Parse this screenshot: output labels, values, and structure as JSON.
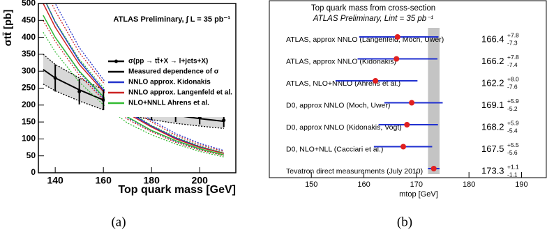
{
  "captions": [
    "(a)",
    "(b)"
  ],
  "chart_data": [
    {
      "type": "line",
      "title": "ATLAS Preliminary, ∫ L = 35 pb⁻¹",
      "xlabel": "Top quark mass [GeV]",
      "ylabel": "σtt̄ [pb]",
      "xlim": [
        133,
        215
      ],
      "xticks": [
        140,
        160,
        180,
        200
      ],
      "ylim": [
        0,
        500
      ],
      "yticks": [
        0,
        50,
        100,
        150,
        200,
        250,
        300,
        350,
        400,
        450,
        500
      ],
      "x": [
        135,
        140,
        150,
        160,
        170,
        180,
        190,
        200,
        210
      ],
      "points": {
        "name": "σ(pp → tt̄+X → l+jets+X)",
        "color": "#000000",
        "x": [
          140,
          150,
          160,
          170,
          175,
          180,
          190,
          200,
          210
        ],
        "values": [
          280,
          240,
          215,
          195,
          190,
          180,
          172,
          163,
          155
        ],
        "errors": [
          40,
          38,
          30,
          27,
          25,
          25,
          22,
          20,
          20
        ]
      },
      "band_color": "#d8d8d8",
      "series": [
        {
          "name": "Measured dependence of σ",
          "color": "#000000",
          "values": [
            305,
            280,
            245,
            215,
            197,
            182,
            170,
            160,
            152
          ],
          "low": [
            262,
            242,
            212,
            186,
            170,
            157,
            146,
            138,
            131
          ],
          "high": [
            350,
            320,
            280,
            246,
            225,
            208,
            195,
            183,
            174
          ]
        },
        {
          "name": "NNLO approx. Kidonakis",
          "color": "#2233cc",
          "values": [
            520,
            445,
            330,
            245,
            180,
            138,
            103,
            77,
            58
          ],
          "low": [
            465,
            400,
            297,
            220,
            162,
            124,
            93,
            69,
            52
          ],
          "high": [
            580,
            500,
            370,
            275,
            202,
            155,
            116,
            87,
            66
          ]
        },
        {
          "name": "NNLO approx. Langenfeld et al.",
          "color": "#cc2222",
          "values": [
            500,
            430,
            320,
            240,
            175,
            135,
            100,
            75,
            57
          ],
          "low": [
            450,
            388,
            288,
            216,
            158,
            121,
            90,
            67,
            51
          ],
          "high": [
            555,
            478,
            355,
            266,
            195,
            150,
            111,
            83,
            63
          ]
        },
        {
          "name": "NLO+NNLL Ahrens et al.",
          "color": "#33bb33",
          "values": [
            465,
            400,
            300,
            225,
            165,
            125,
            95,
            71,
            53
          ],
          "low": [
            415,
            357,
            268,
            201,
            147,
            112,
            85,
            63,
            47
          ],
          "high": [
            520,
            447,
            335,
            252,
            185,
            140,
            106,
            79,
            59
          ]
        }
      ]
    },
    {
      "type": "errorbar",
      "title": "Top quark mass from cross-section",
      "subtitle": "ATLAS Preliminary, Lint = 35 pb⁻¹",
      "xlabel": "mtop [GeV]",
      "xlim": [
        142,
        191
      ],
      "xticks": [
        150,
        160,
        170,
        180,
        190
      ],
      "categories": [
        "ATLAS, approx NNLO (Langenfeld, Moch, Uwer)",
        "ATLAS, approx NNLO (Kidonakis)",
        "ATLAS, NLO+NNLO (Ahrens et al.)",
        "D0, approx NNLO (Moch, Uwer)",
        "D0, approx NNLO (Kidonakis, Vogt)",
        "D0, NLO+NLL (Cacciari et al.)",
        "Tevatron direct measurements (July 2010)"
      ],
      "label_colors": [
        "#2a2ad0",
        "#2a2ad0",
        "#2a2ad0",
        "#444444",
        "#444444",
        "#444444",
        "#444444"
      ],
      "values": [
        166.4,
        166.2,
        162.2,
        169.1,
        168.2,
        167.5,
        173.3
      ],
      "errors_high": [
        7.8,
        7.8,
        8.0,
        5.9,
        5.9,
        5.5,
        1.1
      ],
      "errors_high_labels": [
        "+7.8",
        "+7.8",
        "+8.0",
        "+5.9",
        "+5.9",
        "+5.5",
        "+1.1"
      ],
      "errors_low": [
        -7.3,
        -7.4,
        -7.6,
        -5.2,
        -5.4,
        -5.6,
        -1.1
      ],
      "bar_color": "#2030d0",
      "dot_color": "#e02020",
      "band": {
        "low": 172.2,
        "high": 174.4,
        "color": "#c4c4c4"
      }
    }
  ]
}
